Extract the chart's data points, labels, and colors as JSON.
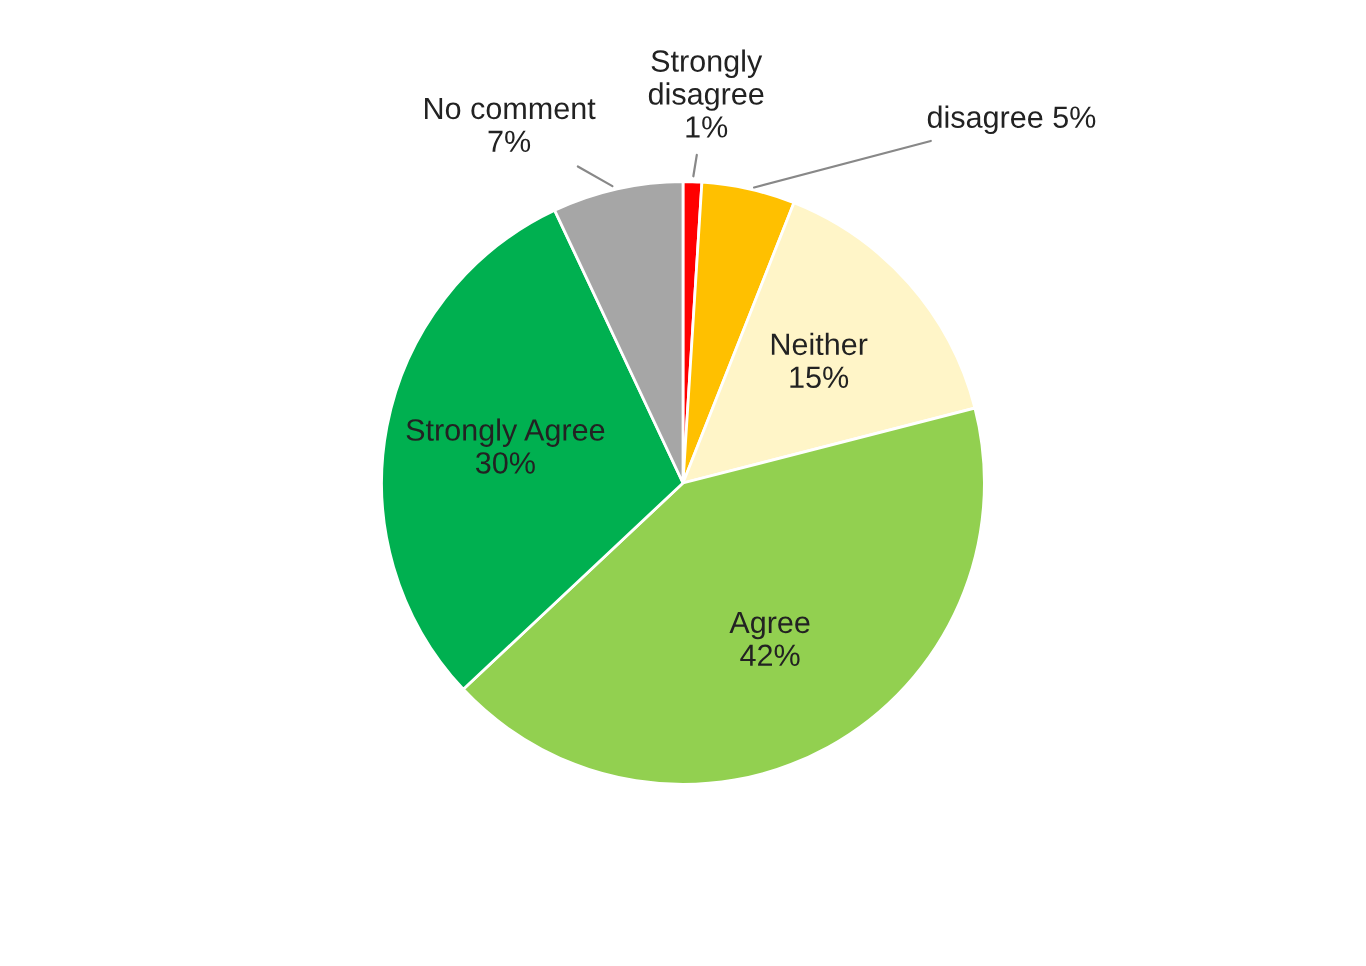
{
  "chart_data": {
    "type": "pie",
    "categories": [
      "Strongly\ndisagree",
      "disagree",
      "Neither",
      "Agree",
      "Strongly Agree",
      "No comment"
    ],
    "values": [
      1,
      5,
      15,
      42,
      30,
      7
    ],
    "value_labels": [
      "1%",
      "5%",
      "15%",
      "42%",
      "30%",
      "7%"
    ],
    "colors": [
      "#ff0000",
      "#ffc000",
      "#fff5c8",
      "#92d050",
      "#00b050",
      "#a6a6a6"
    ],
    "legend": false
  }
}
